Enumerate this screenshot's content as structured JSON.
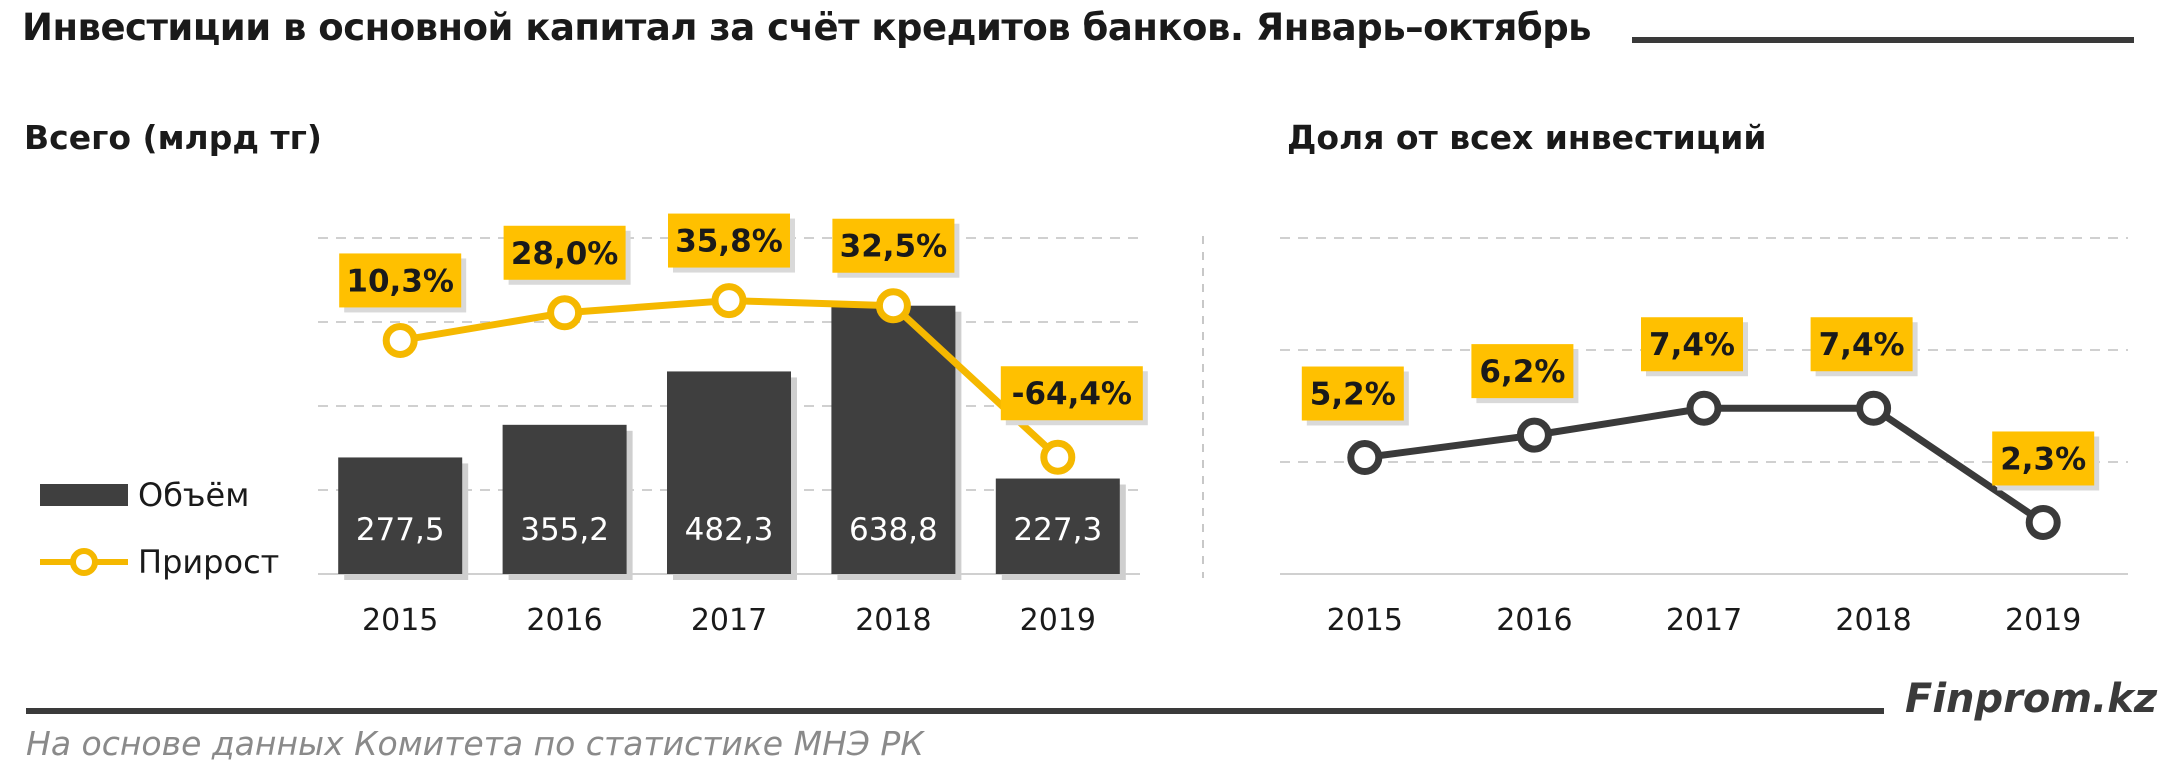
{
  "title": "Инвестиции в основной капитал за счёт кредитов банков. Январь–октябрь",
  "source": "На основе данных  Комитета по статистике МНЭ РК",
  "brand": "Finprom.kz",
  "colors": {
    "bar": "#3f3f3f",
    "growth_line": "#f5b800",
    "label_box": "#ffc000",
    "share_line": "#3a3a3a"
  },
  "legend": {
    "volume": "Объём",
    "growth": "Прирост"
  },
  "chart_data": [
    {
      "type": "bar",
      "title": "Всего (млрд тг)",
      "categories": [
        "2015",
        "2016",
        "2017",
        "2018",
        "2019"
      ],
      "series": [
        {
          "name": "Объём",
          "type": "bar",
          "values": [
            277.5,
            355.2,
            482.3,
            638.8,
            227.3
          ],
          "labels": [
            "277,5",
            "355,2",
            "482,3",
            "638,8",
            "227,3"
          ]
        },
        {
          "name": "Прирост",
          "type": "line",
          "values": [
            10.3,
            28.0,
            35.8,
            32.5,
            -64.4
          ],
          "labels": [
            "10,3%",
            "28,0%",
            "35,8%",
            "32,5%",
            "-64,4%"
          ]
        }
      ],
      "ylim": [
        0,
        800
      ],
      "grid": true,
      "legend_position": "left"
    },
    {
      "type": "line",
      "title": "Доля от всех инвестиций",
      "categories": [
        "2015",
        "2016",
        "2017",
        "2018",
        "2019"
      ],
      "series": [
        {
          "values": [
            5.2,
            6.2,
            7.4,
            7.4,
            2.3
          ],
          "labels": [
            "5,2%",
            "6,2%",
            "7,4%",
            "7,4%",
            "2,3%"
          ]
        }
      ],
      "ylim": [
        0,
        15
      ],
      "grid": true
    }
  ]
}
